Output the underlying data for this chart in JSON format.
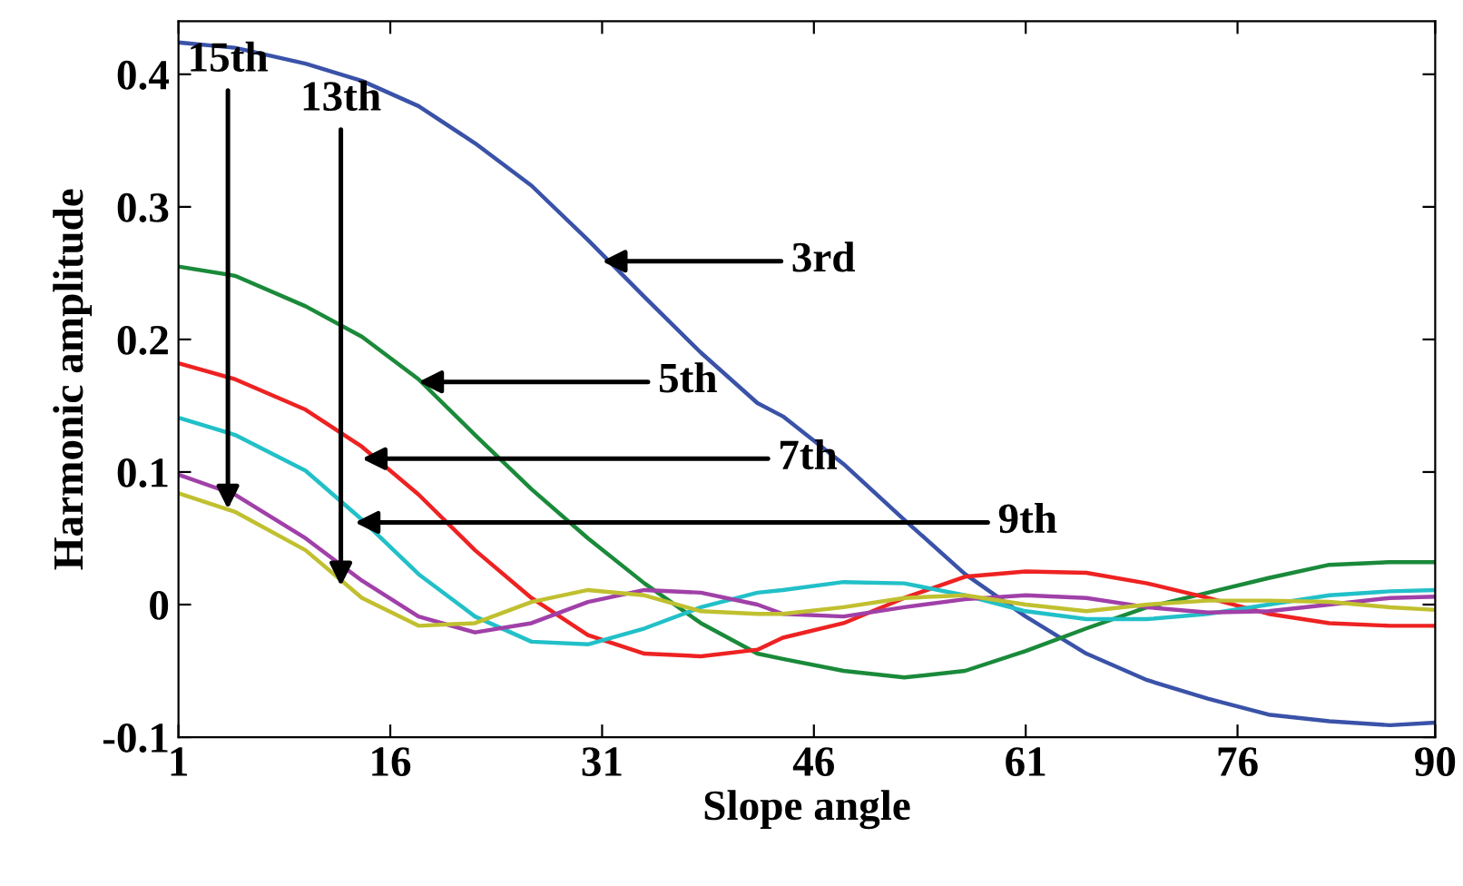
{
  "chart_data": {
    "type": "line",
    "xlabel": "Slope angle",
    "ylabel": "Harmonic amplitude",
    "xlim": [
      1,
      90
    ],
    "xticks": [
      1,
      16,
      31,
      46,
      61,
      76,
      90
    ],
    "ylim": [
      -0.1,
      0.44
    ],
    "yticks": [
      -0.1,
      0,
      0.1,
      0.2,
      0.3,
      0.4
    ],
    "grid": false,
    "series": [
      {
        "color": "#3a52a8",
        "x": [
          1,
          5,
          10,
          14,
          18,
          22,
          26,
          30,
          34,
          38,
          42,
          43.8,
          48.1,
          52.4,
          56.7,
          61,
          65.3,
          69.6,
          73.9,
          78.2,
          82.5,
          86.8,
          90
        ],
        "values": [
          0.424,
          0.42,
          0.408,
          0.395,
          0.376,
          0.348,
          0.316,
          0.275,
          0.232,
          0.19,
          0.152,
          0.142,
          0.106,
          0.064,
          0.023,
          -0.009,
          -0.037,
          -0.057,
          -0.071,
          -0.083,
          -0.088,
          -0.091,
          -0.089
        ]
      },
      {
        "color": "#1a8a3a",
        "x": [
          1,
          5,
          10,
          14,
          18,
          22,
          26,
          30,
          34,
          38,
          42,
          43.8,
          48.1,
          52.4,
          56.7,
          61,
          65.3,
          69.6,
          73.9,
          78.2,
          82.5,
          86.8,
          90
        ],
        "values": [
          0.255,
          0.248,
          0.225,
          0.202,
          0.17,
          0.128,
          0.087,
          0.05,
          0.016,
          -0.014,
          -0.037,
          -0.041,
          -0.05,
          -0.055,
          -0.05,
          -0.035,
          -0.018,
          -0.002,
          0.009,
          0.02,
          0.03,
          0.032,
          0.032
        ]
      },
      {
        "color": "#ee2222",
        "x": [
          1,
          5,
          10,
          14,
          18,
          22,
          26,
          30,
          34,
          38,
          42,
          43.8,
          48.1,
          52.4,
          56.7,
          61,
          65.3,
          69.6,
          73.9,
          78.2,
          82.5,
          86.8,
          90
        ],
        "values": [
          0.182,
          0.17,
          0.147,
          0.119,
          0.083,
          0.041,
          0.005,
          -0.023,
          -0.037,
          -0.039,
          -0.034,
          -0.025,
          -0.014,
          0.005,
          0.021,
          0.025,
          0.024,
          0.016,
          0.005,
          -0.007,
          -0.014,
          -0.016,
          -0.016
        ]
      },
      {
        "color": "#22c0c8",
        "x": [
          1,
          5,
          10,
          14,
          18,
          22,
          26,
          30,
          34,
          38,
          42,
          43.8,
          48.1,
          52.4,
          56.7,
          61,
          65.3,
          69.6,
          73.9,
          78.2,
          82.5,
          86.8,
          90
        ],
        "values": [
          0.141,
          0.128,
          0.101,
          0.064,
          0.023,
          -0.009,
          -0.028,
          -0.03,
          -0.018,
          -0.002,
          0.009,
          0.011,
          0.017,
          0.016,
          0.007,
          -0.005,
          -0.011,
          -0.011,
          -0.007,
          0,
          0.007,
          0.01,
          0.011
        ]
      },
      {
        "color": "#a040a8",
        "x": [
          1,
          5,
          10,
          14,
          18,
          22,
          26,
          30,
          34,
          38,
          42,
          43.8,
          48.1,
          52.4,
          56.7,
          61,
          65.3,
          69.6,
          73.9,
          78.2,
          82.5,
          86.8,
          90
        ],
        "values": [
          0.098,
          0.083,
          0.05,
          0.018,
          -0.009,
          -0.021,
          -0.014,
          0.002,
          0.011,
          0.009,
          0,
          -0.007,
          -0.009,
          -0.002,
          0.004,
          0.007,
          0.005,
          -0.002,
          -0.006,
          -0.005,
          0,
          0.005,
          0.006
        ]
      },
      {
        "color": "#c0c030",
        "x": [
          1,
          5,
          10,
          14,
          18,
          22,
          26,
          30,
          34,
          38,
          42,
          43.8,
          48.1,
          52.4,
          56.7,
          61,
          65.3,
          69.6,
          73.9,
          78.2,
          82.5,
          86.8,
          90
        ],
        "values": [
          0.084,
          0.07,
          0.041,
          0.005,
          -0.016,
          -0.014,
          0.002,
          0.011,
          0.007,
          -0.005,
          -0.007,
          -0.007,
          -0.002,
          0.005,
          0.007,
          0,
          -0.005,
          0,
          0.003,
          0.003,
          0.002,
          -0.002,
          -0.004
        ]
      }
    ],
    "annotations": [
      {
        "text": "3rd",
        "x": 31,
        "y": 0.259
      },
      {
        "text": "5th",
        "x": 18,
        "y": 0.168
      },
      {
        "text": "7th",
        "x": 14,
        "y": 0.11
      },
      {
        "text": "9th",
        "x": 13.5,
        "y": 0.062
      },
      {
        "text": "13th",
        "x": 12.5,
        "y": 0.014
      },
      {
        "text": "15th",
        "x": 4.5,
        "y": 0.072
      }
    ]
  }
}
